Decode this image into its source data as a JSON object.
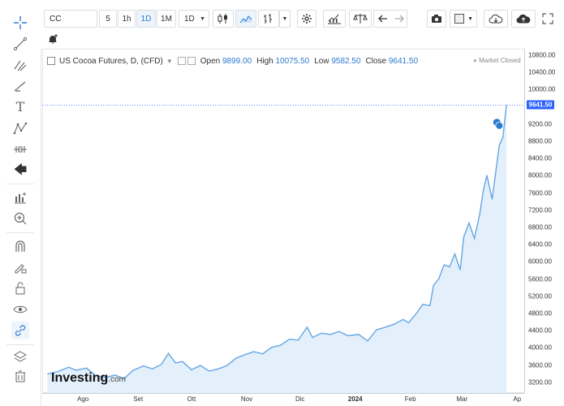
{
  "toolbar": {
    "symbol": "CC",
    "intervals": [
      "5",
      "1h",
      "1D",
      "1M"
    ],
    "selected_interval": "1D",
    "interval_dropdown": "1D"
  },
  "legend": {
    "title": "US Cocoa Futures, D, (CFD)",
    "open_label": "Open",
    "open_value": "9899.00",
    "high_label": "High",
    "high_value": "10075.50",
    "low_label": "Low",
    "low_value": "9582.50",
    "close_label": "Close",
    "close_value": "9641.50"
  },
  "market_status": "Market Closed",
  "last_price": "9641.50",
  "logo": {
    "main": "Investing",
    "suffix": ".com"
  },
  "colors": {
    "line": "#64a6e3",
    "fill": "#e3f0fb",
    "accent": "#2b7bd0",
    "price_tag": "#2962ff"
  },
  "chart_data": {
    "type": "area",
    "title": "US Cocoa Futures, D, (CFD)",
    "xlabel": "",
    "ylabel": "",
    "ylim": [
      2950,
      10950
    ],
    "price_ticks": [
      "10800.00",
      "10400.00",
      "10000.00",
      "9200.00",
      "8800.00",
      "8400.00",
      "8000.00",
      "7600.00",
      "7200.00",
      "6800.00",
      "6400.00",
      "6000.00",
      "5600.00",
      "5200.00",
      "4800.00",
      "4400.00",
      "4000.00",
      "3600.00",
      "3200.00"
    ],
    "time_ticks": [
      {
        "label": "Ago",
        "x": "2023-08-01"
      },
      {
        "label": "Set",
        "x": "2023-09-01"
      },
      {
        "label": "Ott",
        "x": "2023-10-01"
      },
      {
        "label": "Nov",
        "x": "2023-11-01"
      },
      {
        "label": "Dic",
        "x": "2023-12-01"
      },
      {
        "label": "2024",
        "x": "2024-01-01",
        "bold": true
      },
      {
        "label": "Feb",
        "x": "2024-02-01"
      },
      {
        "label": "Mar",
        "x": "2024-03-01"
      },
      {
        "label": "Ap",
        "x": "2024-04-01"
      }
    ],
    "x": [
      "2023-07-12",
      "2023-07-18",
      "2023-07-24",
      "2023-07-28",
      "2023-08-03",
      "2023-08-08",
      "2023-08-14",
      "2023-08-19",
      "2023-08-24",
      "2023-08-29",
      "2023-09-04",
      "2023-09-09",
      "2023-09-14",
      "2023-09-18",
      "2023-09-22",
      "2023-09-26",
      "2023-10-01",
      "2023-10-06",
      "2023-10-11",
      "2023-10-16",
      "2023-10-21",
      "2023-10-26",
      "2023-10-31",
      "2023-11-05",
      "2023-11-10",
      "2023-11-15",
      "2023-11-20",
      "2023-11-25",
      "2023-11-30",
      "2023-12-05",
      "2023-12-08",
      "2023-12-13",
      "2023-12-18",
      "2023-12-23",
      "2023-12-28",
      "2024-01-03",
      "2024-01-08",
      "2024-01-13",
      "2024-01-18",
      "2024-01-23",
      "2024-01-28",
      "2024-01-31",
      "2024-02-04",
      "2024-02-08",
      "2024-02-12",
      "2024-02-14",
      "2024-02-17",
      "2024-02-20",
      "2024-02-23",
      "2024-02-26",
      "2024-02-29",
      "2024-03-02",
      "2024-03-05",
      "2024-03-08",
      "2024-03-11",
      "2024-03-13",
      "2024-03-15",
      "2024-03-18",
      "2024-03-20",
      "2024-03-22",
      "2024-03-24",
      "2024-03-26"
    ],
    "values": [
      3390,
      3450,
      3550,
      3480,
      3530,
      3360,
      3310,
      3370,
      3280,
      3470,
      3580,
      3510,
      3610,
      3870,
      3650,
      3680,
      3490,
      3590,
      3460,
      3510,
      3590,
      3760,
      3840,
      3910,
      3860,
      4010,
      4060,
      4200,
      4180,
      4480,
      4240,
      4340,
      4310,
      4380,
      4280,
      4310,
      4160,
      4420,
      4480,
      4550,
      4660,
      4580,
      4780,
      5010,
      4980,
      5450,
      5610,
      5930,
      5880,
      6180,
      5810,
      6580,
      6900,
      6540,
      7110,
      7660,
      8010,
      7450,
      8090,
      8710,
      8890,
      9641.5
    ]
  }
}
